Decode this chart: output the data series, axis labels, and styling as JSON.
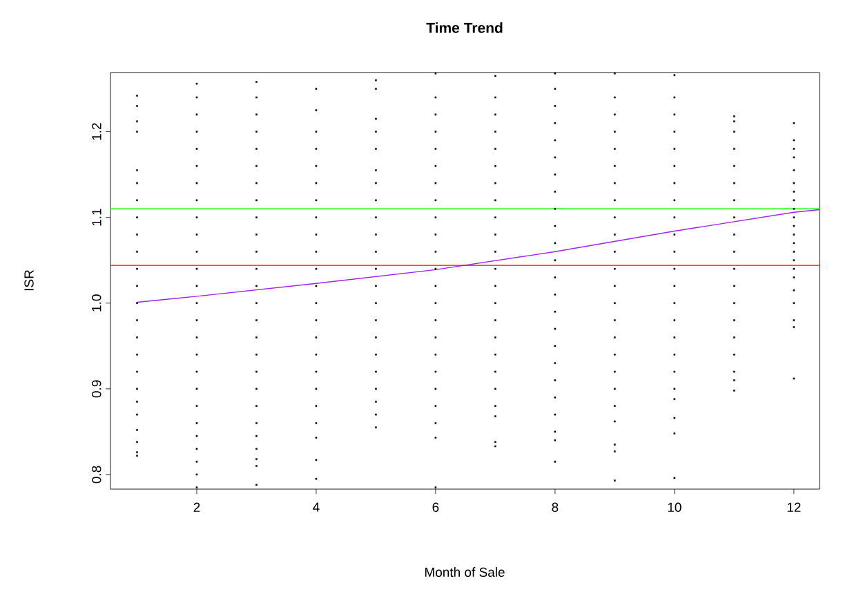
{
  "chart_data": {
    "type": "scatter",
    "title": "Time Trend",
    "xlabel": "Month of Sale",
    "ylabel": "ISR",
    "xlim": [
      0.555,
      12.43
    ],
    "ylim": [
      0.783,
      1.269
    ],
    "xticks": [
      2,
      4,
      6,
      8,
      10,
      12
    ],
    "yticks": [
      0.8,
      0.9,
      {
        "value": 1.0,
        "label": "1.0"
      },
      1.1,
      1.2
    ],
    "grid": false,
    "series": [
      {
        "marker": "square",
        "color": "#000000",
        "x": [
          1,
          1,
          1,
          1,
          1,
          1,
          1,
          1,
          1,
          1,
          1,
          1,
          1,
          1,
          1,
          1,
          1,
          1,
          1,
          1,
          1,
          1,
          1,
          1,
          2,
          2,
          2,
          2,
          2,
          2,
          2,
          2,
          2,
          2,
          2,
          2,
          2,
          2,
          2,
          2,
          2,
          2,
          2,
          2,
          2,
          2,
          2,
          2,
          2,
          2,
          3,
          3,
          3,
          3,
          3,
          3,
          3,
          3,
          3,
          3,
          3,
          3,
          3,
          3,
          3,
          3,
          3,
          3,
          3,
          3,
          3,
          3,
          3,
          3,
          3,
          3,
          4,
          4,
          4,
          4,
          4,
          4,
          4,
          4,
          4,
          4,
          4,
          4,
          4,
          4,
          4,
          4,
          4,
          4,
          4,
          4,
          4,
          4,
          4,
          5,
          5,
          5,
          5,
          5,
          5,
          5,
          5,
          5,
          5,
          5,
          5,
          5,
          5,
          5,
          5,
          5,
          5,
          5,
          5,
          5,
          5,
          6,
          6,
          6,
          6,
          6,
          6,
          6,
          6,
          6,
          6,
          6,
          6,
          6,
          6,
          6,
          6,
          6,
          6,
          6,
          6,
          6,
          6,
          6,
          7,
          7,
          7,
          7,
          7,
          7,
          7,
          7,
          7,
          7,
          7,
          7,
          7,
          7,
          7,
          7,
          7,
          7,
          7,
          7,
          7,
          7,
          7,
          8,
          8,
          8,
          8,
          8,
          8,
          8,
          8,
          8,
          8,
          8,
          8,
          8,
          8,
          8,
          8,
          8,
          8,
          8,
          8,
          8,
          8,
          8,
          8,
          9,
          9,
          9,
          9,
          9,
          9,
          9,
          9,
          9,
          9,
          9,
          9,
          9,
          9,
          9,
          9,
          9,
          9,
          9,
          9,
          9,
          9,
          9,
          9,
          10,
          10,
          10,
          10,
          10,
          10,
          10,
          10,
          10,
          10,
          10,
          10,
          10,
          10,
          10,
          10,
          10,
          10,
          10,
          10,
          10,
          10,
          10,
          11,
          11,
          11,
          11,
          11,
          11,
          11,
          11,
          11,
          11,
          11,
          11,
          11,
          11,
          11,
          11,
          11,
          11,
          11,
          12,
          12,
          12,
          12,
          12,
          12,
          12,
          12,
          12,
          12,
          12,
          12,
          12,
          12,
          12,
          12,
          12,
          12,
          12,
          12,
          12,
          12
        ],
        "values": [
          0.822,
          0.826,
          0.838,
          0.852,
          0.87,
          0.885,
          0.9,
          0.92,
          0.94,
          0.96,
          0.98,
          1.0,
          1.02,
          1.04,
          1.06,
          1.08,
          1.1,
          1.12,
          1.14,
          1.155,
          1.2,
          1.212,
          1.23,
          1.242,
          0.785,
          0.8,
          0.815,
          0.83,
          0.845,
          0.86,
          0.88,
          0.9,
          0.92,
          0.94,
          0.96,
          0.98,
          1.0,
          1.02,
          1.04,
          1.06,
          1.08,
          1.1,
          1.12,
          1.14,
          1.16,
          1.18,
          1.2,
          1.22,
          1.24,
          1.256,
          0.788,
          0.81,
          0.818,
          0.83,
          0.845,
          0.86,
          0.88,
          0.9,
          0.92,
          0.94,
          0.96,
          0.98,
          1.0,
          1.02,
          1.04,
          1.06,
          1.08,
          1.1,
          1.12,
          1.14,
          1.16,
          1.18,
          1.2,
          1.22,
          1.24,
          1.258,
          0.795,
          0.817,
          0.843,
          0.86,
          0.88,
          0.9,
          0.92,
          0.94,
          0.96,
          0.98,
          1.0,
          1.02,
          1.04,
          1.06,
          1.08,
          1.1,
          1.12,
          1.14,
          1.16,
          1.18,
          1.2,
          1.225,
          1.25,
          0.855,
          0.87,
          0.885,
          0.9,
          0.92,
          0.94,
          0.96,
          0.98,
          1.0,
          1.02,
          1.04,
          1.06,
          1.08,
          1.1,
          1.12,
          1.14,
          1.155,
          1.18,
          1.2,
          1.215,
          1.25,
          1.26,
          0.785,
          0.843,
          0.86,
          0.88,
          0.9,
          0.92,
          0.94,
          0.96,
          0.98,
          1.0,
          1.02,
          1.04,
          1.06,
          1.08,
          1.1,
          1.12,
          1.14,
          1.16,
          1.18,
          1.2,
          1.22,
          1.24,
          1.268,
          0.833,
          0.838,
          0.868,
          0.88,
          0.9,
          0.92,
          0.94,
          0.96,
          0.98,
          1.0,
          1.02,
          1.04,
          1.06,
          1.08,
          1.1,
          1.12,
          1.14,
          1.16,
          1.18,
          1.2,
          1.22,
          1.24,
          1.265,
          0.815,
          0.84,
          0.85,
          0.87,
          0.89,
          0.91,
          0.93,
          0.95,
          0.97,
          0.99,
          1.01,
          1.03,
          1.05,
          1.07,
          1.09,
          1.11,
          1.13,
          1.15,
          1.17,
          1.19,
          1.21,
          1.23,
          1.25,
          1.268,
          0.793,
          0.827,
          0.835,
          0.862,
          0.88,
          0.9,
          0.92,
          0.94,
          0.96,
          0.98,
          1.0,
          1.02,
          1.04,
          1.06,
          1.08,
          1.1,
          1.12,
          1.14,
          1.16,
          1.18,
          1.2,
          1.22,
          1.24,
          1.268,
          0.796,
          0.848,
          0.866,
          0.888,
          0.9,
          0.92,
          0.94,
          0.96,
          0.98,
          1.0,
          1.02,
          1.04,
          1.06,
          1.08,
          1.1,
          1.12,
          1.14,
          1.16,
          1.18,
          1.2,
          1.22,
          1.24,
          1.266,
          0.898,
          0.91,
          0.92,
          0.94,
          0.96,
          0.98,
          1.0,
          1.02,
          1.04,
          1.06,
          1.08,
          1.1,
          1.12,
          1.14,
          1.16,
          1.18,
          1.2,
          1.212,
          1.218,
          0.912,
          0.972,
          0.98,
          1.0,
          1.015,
          1.03,
          1.04,
          1.05,
          1.06,
          1.07,
          1.08,
          1.09,
          1.1,
          1.11,
          1.12,
          1.13,
          1.14,
          1.155,
          1.17,
          1.18,
          1.19,
          1.21
        ]
      },
      {
        "type": "line",
        "color": "#a020f0",
        "x": [
          1,
          2,
          4,
          6,
          8,
          10,
          12,
          12.43
        ],
        "values": [
          1.001,
          1.008,
          1.023,
          1.039,
          1.06,
          1.084,
          1.106,
          1.109
        ]
      }
    ],
    "ref_lines": [
      {
        "axis": "y",
        "value": 1.11,
        "color": "#00ff00"
      },
      {
        "axis": "y",
        "value": 1.044,
        "color": "#ff0000"
      }
    ]
  }
}
